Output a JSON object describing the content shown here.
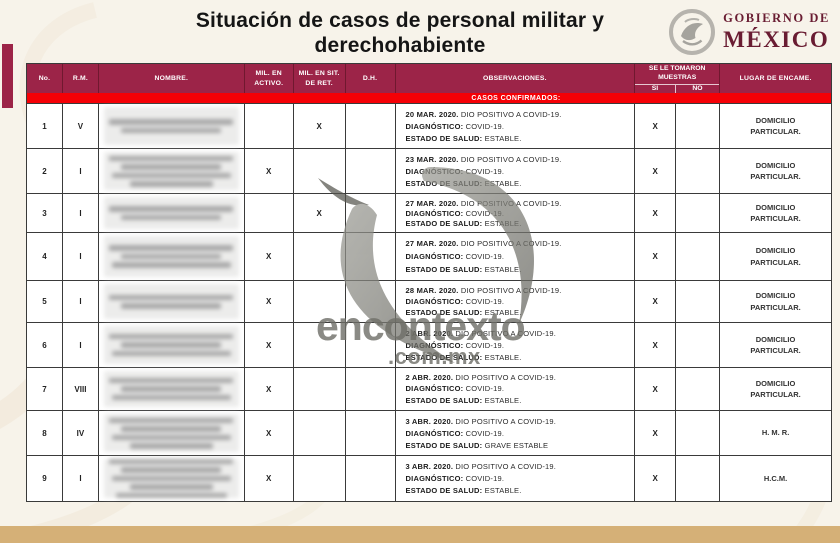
{
  "header": {
    "title_line1": "Situación de casos de personal militar y",
    "title_line2": "derechohabiente"
  },
  "logo": {
    "line1": "GOBIERNO DE",
    "line2": "MÉXICO",
    "seal_icon": "mexico-eagle-seal"
  },
  "watermark": {
    "text": "encontexto",
    "suffix": ".com.mx",
    "icon": "swoosh-crescent"
  },
  "colors": {
    "header_maroon": "#9C2448",
    "wine_text": "#691C32",
    "band_red": "#F50006",
    "bottom_tan": "#D5B077",
    "page_cream": "#F7F3EA",
    "grid": "#3A3A3A"
  },
  "table": {
    "headers": {
      "no": "No.",
      "rm": "R.M.",
      "nombre": "NOMBRE.",
      "mil_activo": "MIL. EN ACTIVO.",
      "mil_ret": "MIL. EN SIT. DE RET.",
      "dh": "D.H.",
      "observaciones": "OBSERVACIONES.",
      "muestras": "SE LE TOMARON MUESTRAS",
      "si_label": "SI",
      "no_label": "NO",
      "lugar": "LUGAR DE ENCAME."
    },
    "section_label": "CASOS CONFIRMADOS:",
    "obs_labels": {
      "diagnostico": "DIAGNÓSTICO:",
      "estado": "ESTADO DE SALUD:"
    },
    "rows": [
      {
        "no": "1",
        "rm": "V",
        "mil_activo": "",
        "mil_ret": "X",
        "dh": "",
        "fecha": "20 MAR. 2020.",
        "evento": "DIO POSITIVO A COVID-19.",
        "diagnostico": "COVID-19.",
        "estado": "ESTABLE.",
        "muestra_si": "X",
        "muestra_no": "",
        "lugar": "DOMICILIO PARTICULAR.",
        "name_redacted": true,
        "name_redacted_lines": 2
      },
      {
        "no": "2",
        "rm": "I",
        "mil_activo": "X",
        "mil_ret": "",
        "dh": "",
        "fecha": "23 MAR. 2020.",
        "evento": "DIO POSITIVO A COVID-19.",
        "diagnostico": "COVID-19.",
        "estado": "ESTABLE.",
        "muestra_si": "X",
        "muestra_no": "",
        "lugar": "DOMICILIO PARTICULAR.",
        "name_redacted": true,
        "name_redacted_lines": 4
      },
      {
        "no": "3",
        "rm": "I",
        "mil_activo": "",
        "mil_ret": "X",
        "dh": "",
        "fecha": "27 MAR. 2020.",
        "evento": "DIO POSITIVO A COVID-19.",
        "diagnostico": "COVID-19.",
        "estado": "ESTABLE.",
        "muestra_si": "X",
        "muestra_no": "",
        "lugar": "DOMICILIO PARTICULAR.",
        "name_redacted": true,
        "name_redacted_lines": 2
      },
      {
        "no": "4",
        "rm": "I",
        "mil_activo": "X",
        "mil_ret": "",
        "dh": "",
        "fecha": "27 MAR. 2020.",
        "evento": "DIO POSITIVO A COVID-19.",
        "diagnostico": "COVID-19.",
        "estado": "ESTABLE.",
        "muestra_si": "X",
        "muestra_no": "",
        "lugar": "DOMICILIO PARTICULAR.",
        "name_redacted": true,
        "name_redacted_lines": 3
      },
      {
        "no": "5",
        "rm": "I",
        "mil_activo": "X",
        "mil_ret": "",
        "dh": "",
        "fecha": "28 MAR. 2020.",
        "evento": "DIO POSITIVO A COVID-19.",
        "diagnostico": "COVID-19.",
        "estado": "ESTABLE.",
        "muestra_si": "X",
        "muestra_no": "",
        "lugar": "DOMICILIO PARTICULAR.",
        "name_redacted": true,
        "name_redacted_lines": 2
      },
      {
        "no": "6",
        "rm": "I",
        "mil_activo": "X",
        "mil_ret": "",
        "dh": "",
        "fecha": "2 ABR. 2020.",
        "evento": "DIO POSITIVO A COVID-19.",
        "diagnostico": "COVID-19.",
        "estado": "ESTABLE.",
        "muestra_si": "X",
        "muestra_no": "",
        "lugar": "DOMICILIO PARTICULAR.",
        "name_redacted": true,
        "name_redacted_lines": 3
      },
      {
        "no": "7",
        "rm": "VIII",
        "mil_activo": "X",
        "mil_ret": "",
        "dh": "",
        "fecha": "2 ABR. 2020.",
        "evento": "DIO POSITIVO A COVID-19.",
        "diagnostico": "COVID-19.",
        "estado": "ESTABLE.",
        "muestra_si": "X",
        "muestra_no": "",
        "lugar": "DOMICILIO PARTICULAR.",
        "name_redacted": true,
        "name_redacted_lines": 3
      },
      {
        "no": "8",
        "rm": "IV",
        "mil_activo": "X",
        "mil_ret": "",
        "dh": "",
        "fecha": "3 ABR. 2020.",
        "evento": "DIO POSITIVO A COVID-19.",
        "diagnostico": "COVID-19.",
        "estado": "GRAVE ESTABLE",
        "muestra_si": "X",
        "muestra_no": "",
        "lugar": "H. M. R.",
        "name_redacted": true,
        "name_redacted_lines": 4
      },
      {
        "no": "9",
        "rm": "I",
        "mil_activo": "X",
        "mil_ret": "",
        "dh": "",
        "fecha": "3 ABR. 2020.",
        "evento": "DIO POSITIVO A COVID-19.",
        "diagnostico": "COVID-19.",
        "estado": "ESTABLE.",
        "muestra_si": "X",
        "muestra_no": "",
        "lugar": "H.C.M.",
        "name_redacted": true,
        "name_redacted_lines": 5
      }
    ]
  }
}
